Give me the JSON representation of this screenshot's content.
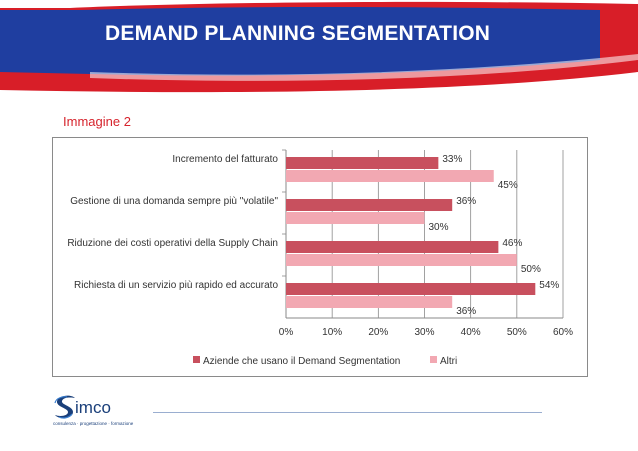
{
  "header": {
    "title": "DEMAND PLANNING SEGMENTATION"
  },
  "subtitle": "Immagine 2",
  "colors": {
    "series1": "#c8505e",
    "series2": "#f2a8b2",
    "banner_blue": "#1f3ea0",
    "banner_red": "#d81e28",
    "subtitle_red": "#d6242d"
  },
  "chart_data": {
    "type": "bar",
    "orientation": "horizontal",
    "categories": [
      "Incremento del fatturato",
      "Gestione di una domanda sempre più \"volatile\"",
      "Riduzione dei costi operativi della Supply Chain",
      "Richiesta di un servizio più rapido ed accurato"
    ],
    "series": [
      {
        "name": "Aziende che usano il Demand Segmentation",
        "values": [
          33,
          36,
          46,
          54
        ],
        "labels": [
          "33%",
          "36%",
          "46%",
          "54%"
        ]
      },
      {
        "name": "Altri",
        "values": [
          45,
          30,
          50,
          36
        ],
        "labels": [
          "45%",
          "30%",
          "50%",
          "36%"
        ]
      }
    ],
    "xlim": [
      0,
      60
    ],
    "xticks": [
      "0%",
      "10%",
      "20%",
      "30%",
      "40%",
      "50%",
      "60%"
    ],
    "grid": true,
    "legend_position": "bottom"
  },
  "logo": {
    "name": "simco",
    "tagline": "consulenza · progettazione · formazione"
  }
}
